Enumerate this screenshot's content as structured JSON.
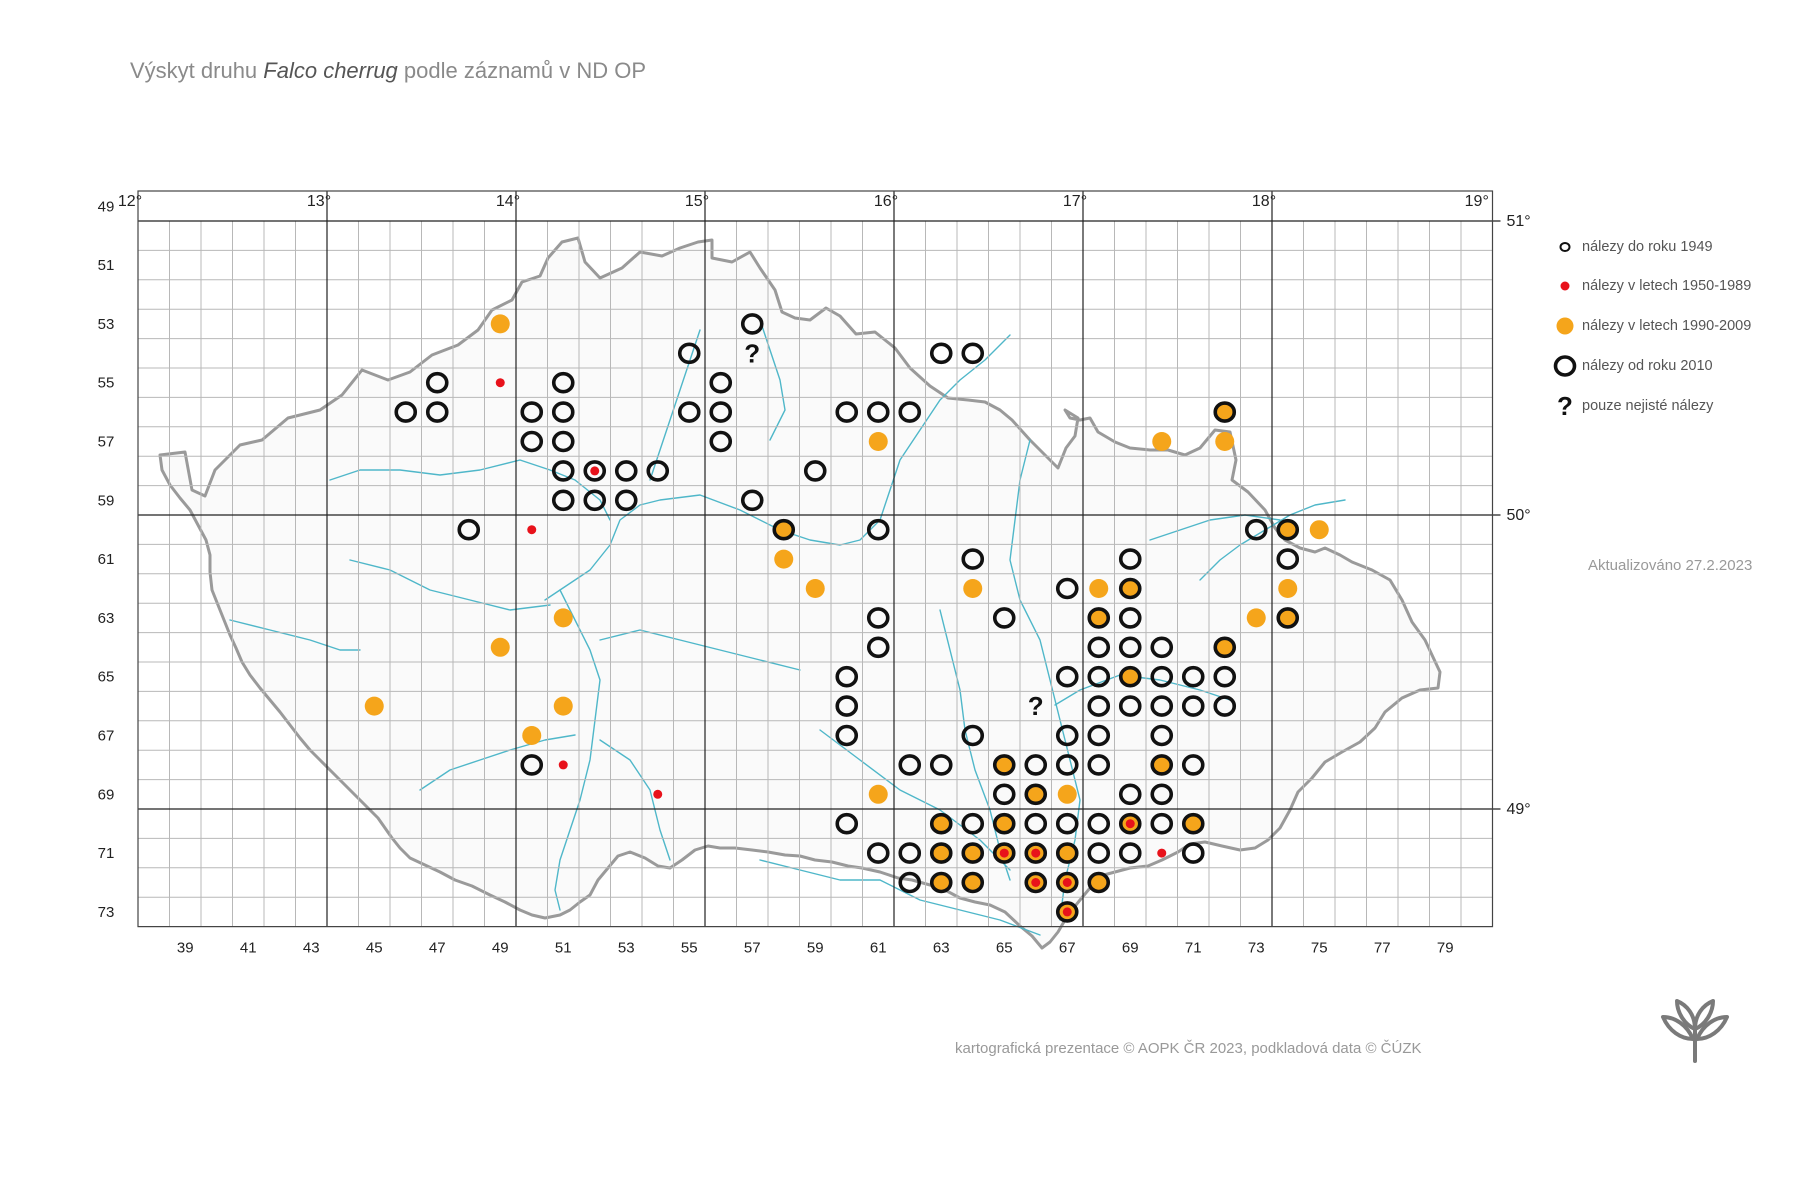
{
  "title": {
    "prefix": "Výskyt druhu ",
    "species": "Falco cherrug",
    "suffix": " podle záznamů v ND OP"
  },
  "grid": {
    "lon_labels": [
      "12°",
      "13°",
      "14°",
      "15°",
      "16°",
      "17°",
      "18°",
      "19°"
    ],
    "lat_labels": [
      "51°",
      "50°",
      "49°"
    ],
    "row_labels": [
      "49",
      "51",
      "53",
      "55",
      "57",
      "59",
      "61",
      "63",
      "65",
      "67",
      "69",
      "71",
      "73"
    ],
    "col_labels": [
      "39",
      "41",
      "43",
      "45",
      "47",
      "49",
      "51",
      "53",
      "55",
      "57",
      "59",
      "61",
      "63",
      "65",
      "67",
      "69",
      "71",
      "73",
      "75",
      "77",
      "79"
    ]
  },
  "legend": {
    "items": [
      {
        "key": "pre1949",
        "label": "nálezy do roku 1949"
      },
      {
        "key": "r1950_1989",
        "label": "nálezy v letech 1950-1989"
      },
      {
        "key": "r1990_2009",
        "label": "nálezy v letech 1990-2009"
      },
      {
        "key": "since2010",
        "label": "nálezy od roku 2010"
      },
      {
        "key": "uncertain",
        "label": "pouze nejisté nálezy"
      }
    ]
  },
  "colors": {
    "orange": "#f5a51b",
    "red": "#e8121b",
    "black": "#111111",
    "river": "#4fb7c9",
    "border": "#9a9a9a",
    "grid": "#b8b8b8"
  },
  "updated": "Aktualizováno 27.2.2023",
  "credit": "kartografická prezentace © AOPK ČR 2023, podkladová data © ČÚZK",
  "occurrences": [
    {
      "col": 49,
      "row": 53,
      "rec": [
        "r1990_2009"
      ]
    },
    {
      "col": 57,
      "row": 53,
      "rec": [
        "since2010"
      ]
    },
    {
      "col": 55,
      "row": 54,
      "rec": [
        "since2010"
      ]
    },
    {
      "col": 57,
      "row": 54,
      "rec": [
        "uncertain"
      ]
    },
    {
      "col": 63,
      "row": 54,
      "rec": [
        "since2010"
      ]
    },
    {
      "col": 64,
      "row": 54,
      "rec": [
        "since2010"
      ]
    },
    {
      "col": 47,
      "row": 55,
      "rec": [
        "since2010"
      ]
    },
    {
      "col": 49,
      "row": 55,
      "rec": [
        "r1950_1989"
      ]
    },
    {
      "col": 51,
      "row": 55,
      "rec": [
        "since2010"
      ]
    },
    {
      "col": 56,
      "row": 55,
      "rec": [
        "since2010"
      ]
    },
    {
      "col": 46,
      "row": 56,
      "rec": [
        "since2010"
      ]
    },
    {
      "col": 47,
      "row": 56,
      "rec": [
        "since2010"
      ]
    },
    {
      "col": 50,
      "row": 56,
      "rec": [
        "since2010"
      ]
    },
    {
      "col": 51,
      "row": 56,
      "rec": [
        "since2010"
      ]
    },
    {
      "col": 55,
      "row": 56,
      "rec": [
        "since2010"
      ]
    },
    {
      "col": 56,
      "row": 56,
      "rec": [
        "since2010"
      ]
    },
    {
      "col": 60,
      "row": 56,
      "rec": [
        "since2010"
      ]
    },
    {
      "col": 61,
      "row": 56,
      "rec": [
        "since2010"
      ]
    },
    {
      "col": 62,
      "row": 56,
      "rec": [
        "since2010"
      ]
    },
    {
      "col": 72,
      "row": 56,
      "rec": [
        "r1990_2009",
        "since2010"
      ]
    },
    {
      "col": 50,
      "row": 57,
      "rec": [
        "since2010"
      ]
    },
    {
      "col": 51,
      "row": 57,
      "rec": [
        "since2010"
      ]
    },
    {
      "col": 56,
      "row": 57,
      "rec": [
        "since2010"
      ]
    },
    {
      "col": 61,
      "row": 57,
      "rec": [
        "r1990_2009"
      ]
    },
    {
      "col": 70,
      "row": 57,
      "rec": [
        "r1990_2009"
      ]
    },
    {
      "col": 72,
      "row": 57,
      "rec": [
        "r1990_2009"
      ]
    },
    {
      "col": 51,
      "row": 58,
      "rec": [
        "since2010"
      ]
    },
    {
      "col": 52,
      "row": 58,
      "rec": [
        "since2010",
        "r1950_1989"
      ]
    },
    {
      "col": 53,
      "row": 58,
      "rec": [
        "since2010"
      ]
    },
    {
      "col": 54,
      "row": 58,
      "rec": [
        "since2010"
      ]
    },
    {
      "col": 59,
      "row": 58,
      "rec": [
        "since2010"
      ]
    },
    {
      "col": 51,
      "row": 59,
      "rec": [
        "since2010"
      ]
    },
    {
      "col": 52,
      "row": 59,
      "rec": [
        "since2010"
      ]
    },
    {
      "col": 53,
      "row": 59,
      "rec": [
        "since2010"
      ]
    },
    {
      "col": 57,
      "row": 59,
      "rec": [
        "since2010"
      ]
    },
    {
      "col": 48,
      "row": 60,
      "rec": [
        "since2010"
      ]
    },
    {
      "col": 50,
      "row": 60,
      "rec": [
        "r1950_1989"
      ]
    },
    {
      "col": 58,
      "row": 60,
      "rec": [
        "r1990_2009",
        "since2010"
      ]
    },
    {
      "col": 61,
      "row": 60,
      "rec": [
        "since2010"
      ]
    },
    {
      "col": 73,
      "row": 60,
      "rec": [
        "since2010"
      ]
    },
    {
      "col": 74,
      "row": 60,
      "rec": [
        "r1990_2009",
        "since2010"
      ]
    },
    {
      "col": 75,
      "row": 60,
      "rec": [
        "r1990_2009"
      ]
    },
    {
      "col": 58,
      "row": 61,
      "rec": [
        "r1990_2009"
      ]
    },
    {
      "col": 64,
      "row": 61,
      "rec": [
        "since2010"
      ]
    },
    {
      "col": 69,
      "row": 61,
      "rec": [
        "since2010"
      ]
    },
    {
      "col": 74,
      "row": 61,
      "rec": [
        "since2010"
      ]
    },
    {
      "col": 59,
      "row": 62,
      "rec": [
        "r1990_2009"
      ]
    },
    {
      "col": 64,
      "row": 62,
      "rec": [
        "r1990_2009"
      ]
    },
    {
      "col": 67,
      "row": 62,
      "rec": [
        "since2010"
      ]
    },
    {
      "col": 68,
      "row": 62,
      "rec": [
        "r1990_2009"
      ]
    },
    {
      "col": 69,
      "row": 62,
      "rec": [
        "r1990_2009",
        "since2010"
      ]
    },
    {
      "col": 74,
      "row": 62,
      "rec": [
        "r1990_2009"
      ]
    },
    {
      "col": 51,
      "row": 63,
      "rec": [
        "r1990_2009"
      ]
    },
    {
      "col": 61,
      "row": 63,
      "rec": [
        "since2010"
      ]
    },
    {
      "col": 65,
      "row": 63,
      "rec": [
        "since2010"
      ]
    },
    {
      "col": 68,
      "row": 63,
      "rec": [
        "r1990_2009",
        "since2010"
      ]
    },
    {
      "col": 69,
      "row": 63,
      "rec": [
        "since2010"
      ]
    },
    {
      "col": 73,
      "row": 63,
      "rec": [
        "r1990_2009"
      ]
    },
    {
      "col": 74,
      "row": 63,
      "rec": [
        "r1990_2009",
        "since2010"
      ]
    },
    {
      "col": 49,
      "row": 64,
      "rec": [
        "r1990_2009"
      ]
    },
    {
      "col": 61,
      "row": 64,
      "rec": [
        "since2010"
      ]
    },
    {
      "col": 68,
      "row": 64,
      "rec": [
        "since2010"
      ]
    },
    {
      "col": 69,
      "row": 64,
      "rec": [
        "since2010"
      ]
    },
    {
      "col": 70,
      "row": 64,
      "rec": [
        "since2010"
      ]
    },
    {
      "col": 72,
      "row": 64,
      "rec": [
        "r1990_2009",
        "since2010"
      ]
    },
    {
      "col": 60,
      "row": 65,
      "rec": [
        "since2010"
      ]
    },
    {
      "col": 67,
      "row": 65,
      "rec": [
        "since2010"
      ]
    },
    {
      "col": 68,
      "row": 65,
      "rec": [
        "since2010"
      ]
    },
    {
      "col": 69,
      "row": 65,
      "rec": [
        "r1990_2009",
        "since2010"
      ]
    },
    {
      "col": 70,
      "row": 65,
      "rec": [
        "since2010"
      ]
    },
    {
      "col": 71,
      "row": 65,
      "rec": [
        "since2010"
      ]
    },
    {
      "col": 72,
      "row": 65,
      "rec": [
        "since2010"
      ]
    },
    {
      "col": 45,
      "row": 66,
      "rec": [
        "r1990_2009"
      ]
    },
    {
      "col": 51,
      "row": 66,
      "rec": [
        "r1990_2009"
      ]
    },
    {
      "col": 60,
      "row": 66,
      "rec": [
        "since2010"
      ]
    },
    {
      "col": 66,
      "row": 66,
      "rec": [
        "uncertain"
      ]
    },
    {
      "col": 68,
      "row": 66,
      "rec": [
        "since2010"
      ]
    },
    {
      "col": 69,
      "row": 66,
      "rec": [
        "since2010"
      ]
    },
    {
      "col": 70,
      "row": 66,
      "rec": [
        "since2010"
      ]
    },
    {
      "col": 71,
      "row": 66,
      "rec": [
        "since2010"
      ]
    },
    {
      "col": 72,
      "row": 66,
      "rec": [
        "since2010"
      ]
    },
    {
      "col": 50,
      "row": 67,
      "rec": [
        "r1990_2009"
      ]
    },
    {
      "col": 60,
      "row": 67,
      "rec": [
        "since2010"
      ]
    },
    {
      "col": 64,
      "row": 67,
      "rec": [
        "since2010"
      ]
    },
    {
      "col": 67,
      "row": 67,
      "rec": [
        "since2010"
      ]
    },
    {
      "col": 68,
      "row": 67,
      "rec": [
        "since2010"
      ]
    },
    {
      "col": 70,
      "row": 67,
      "rec": [
        "since2010"
      ]
    },
    {
      "col": 50,
      "row": 68,
      "rec": [
        "since2010"
      ]
    },
    {
      "col": 51,
      "row": 68,
      "rec": [
        "r1950_1989"
      ]
    },
    {
      "col": 62,
      "row": 68,
      "rec": [
        "since2010"
      ]
    },
    {
      "col": 63,
      "row": 68,
      "rec": [
        "since2010"
      ]
    },
    {
      "col": 65,
      "row": 68,
      "rec": [
        "r1990_2009",
        "since2010"
      ]
    },
    {
      "col": 66,
      "row": 68,
      "rec": [
        "since2010"
      ]
    },
    {
      "col": 67,
      "row": 68,
      "rec": [
        "since2010"
      ]
    },
    {
      "col": 68,
      "row": 68,
      "rec": [
        "since2010"
      ]
    },
    {
      "col": 70,
      "row": 68,
      "rec": [
        "r1990_2009",
        "since2010"
      ]
    },
    {
      "col": 71,
      "row": 68,
      "rec": [
        "since2010"
      ]
    },
    {
      "col": 54,
      "row": 69,
      "rec": [
        "r1950_1989"
      ]
    },
    {
      "col": 61,
      "row": 69,
      "rec": [
        "r1990_2009"
      ]
    },
    {
      "col": 65,
      "row": 69,
      "rec": [
        "since2010"
      ]
    },
    {
      "col": 66,
      "row": 69,
      "rec": [
        "r1990_2009",
        "since2010"
      ]
    },
    {
      "col": 67,
      "row": 69,
      "rec": [
        "r1990_2009"
      ]
    },
    {
      "col": 69,
      "row": 69,
      "rec": [
        "since2010"
      ]
    },
    {
      "col": 70,
      "row": 69,
      "rec": [
        "since2010"
      ]
    },
    {
      "col": 60,
      "row": 70,
      "rec": [
        "since2010"
      ]
    },
    {
      "col": 63,
      "row": 70,
      "rec": [
        "r1990_2009",
        "since2010"
      ]
    },
    {
      "col": 64,
      "row": 70,
      "rec": [
        "since2010"
      ]
    },
    {
      "col": 65,
      "row": 70,
      "rec": [
        "r1990_2009",
        "since2010"
      ]
    },
    {
      "col": 66,
      "row": 70,
      "rec": [
        "since2010"
      ]
    },
    {
      "col": 67,
      "row": 70,
      "rec": [
        "since2010"
      ]
    },
    {
      "col": 68,
      "row": 70,
      "rec": [
        "since2010"
      ]
    },
    {
      "col": 69,
      "row": 70,
      "rec": [
        "r1990_2009",
        "since2010",
        "r1950_1989"
      ]
    },
    {
      "col": 70,
      "row": 70,
      "rec": [
        "since2010"
      ]
    },
    {
      "col": 71,
      "row": 70,
      "rec": [
        "r1990_2009",
        "since2010"
      ]
    },
    {
      "col": 61,
      "row": 71,
      "rec": [
        "since2010"
      ]
    },
    {
      "col": 62,
      "row": 71,
      "rec": [
        "since2010"
      ]
    },
    {
      "col": 63,
      "row": 71,
      "rec": [
        "r1990_2009",
        "since2010"
      ]
    },
    {
      "col": 64,
      "row": 71,
      "rec": [
        "r1990_2009",
        "since2010"
      ]
    },
    {
      "col": 65,
      "row": 71,
      "rec": [
        "r1990_2009",
        "since2010",
        "r1950_1989"
      ]
    },
    {
      "col": 66,
      "row": 71,
      "rec": [
        "r1990_2009",
        "since2010",
        "r1950_1989"
      ]
    },
    {
      "col": 67,
      "row": 71,
      "rec": [
        "r1990_2009",
        "since2010"
      ]
    },
    {
      "col": 68,
      "row": 71,
      "rec": [
        "since2010"
      ]
    },
    {
      "col": 69,
      "row": 71,
      "rec": [
        "since2010"
      ]
    },
    {
      "col": 70,
      "row": 71,
      "rec": [
        "r1950_1989"
      ]
    },
    {
      "col": 71,
      "row": 71,
      "rec": [
        "since2010"
      ]
    },
    {
      "col": 62,
      "row": 72,
      "rec": [
        "since2010"
      ]
    },
    {
      "col": 63,
      "row": 72,
      "rec": [
        "r1990_2009",
        "since2010"
      ]
    },
    {
      "col": 64,
      "row": 72,
      "rec": [
        "r1990_2009",
        "since2010"
      ]
    },
    {
      "col": 66,
      "row": 72,
      "rec": [
        "r1990_2009",
        "since2010",
        "r1950_1989"
      ]
    },
    {
      "col": 67,
      "row": 72,
      "rec": [
        "r1990_2009",
        "since2010",
        "r1950_1989"
      ]
    },
    {
      "col": 68,
      "row": 72,
      "rec": [
        "r1990_2009",
        "since2010"
      ]
    },
    {
      "col": 67,
      "row": 73,
      "rec": [
        "r1990_2009",
        "since2010",
        "r1950_1989"
      ]
    }
  ]
}
